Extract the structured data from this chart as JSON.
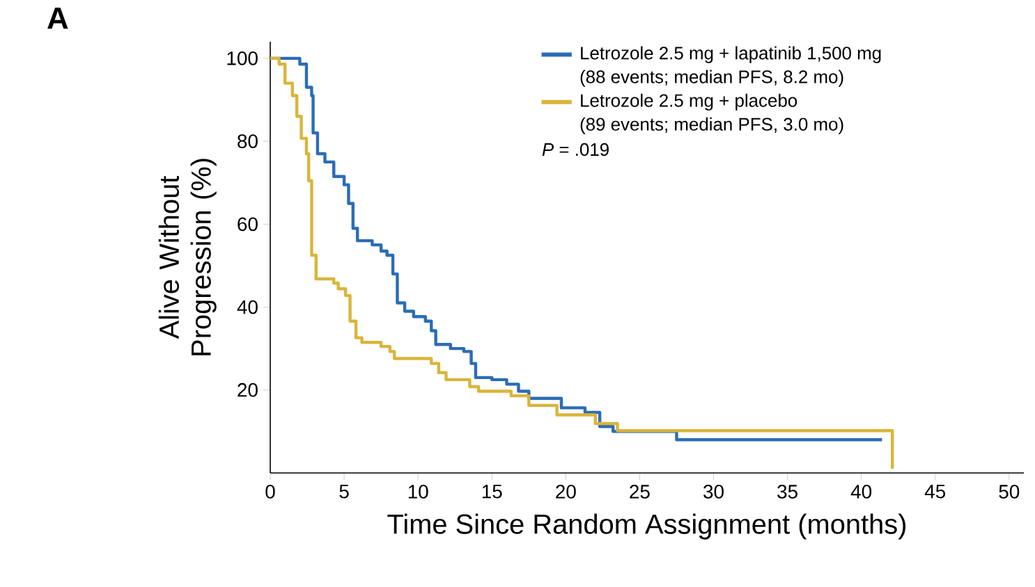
{
  "chart_data": {
    "type": "step",
    "title": "A",
    "xlabel": "Time Since Random Assignment (months)",
    "ylabel": "Alive Without Progression (%)",
    "xlim": [
      0,
      51
    ],
    "ylim": [
      0,
      104
    ],
    "xticks": [
      0,
      5,
      10,
      15,
      20,
      25,
      30,
      35,
      40,
      45,
      50
    ],
    "yticks": [
      20,
      40,
      60,
      80,
      100
    ],
    "legend": "top right",
    "grid": false,
    "marker": "none",
    "series": [
      {
        "name": "Letrozole 2.5 mg + lapatinib 1,500 mg",
        "color": "#2a6db5",
        "x": [
          0,
          2.0,
          2.45,
          2.8,
          2.9,
          3.2,
          3.7,
          4.3,
          5.0,
          5.3,
          5.6,
          5.9,
          6.9,
          7.5,
          7.9,
          8.3,
          8.6,
          9.1,
          9.7,
          10.5,
          10.9,
          11.2,
          12.2,
          13.1,
          13.6,
          13.9,
          15.0,
          16.0,
          16.8,
          17.5,
          19.7,
          21.3,
          22.3,
          23.2,
          27.5,
          41.4
        ],
        "values": [
          100,
          98.6,
          93,
          91,
          82,
          77,
          75,
          71.5,
          69.5,
          65,
          59,
          56,
          55,
          53.5,
          52.5,
          48,
          41,
          39,
          37.7,
          36.6,
          34.3,
          31,
          30,
          29.3,
          26.4,
          23,
          22.5,
          21.4,
          19.7,
          18,
          15.7,
          14.6,
          11.2,
          10,
          8,
          8
        ]
      },
      {
        "name": "Letrozole 2.5 mg + placebo",
        "color": "#d9b53a",
        "x": [
          0,
          0.6,
          1.0,
          1.5,
          1.8,
          2.1,
          2.45,
          2.6,
          2.8,
          3.1,
          4.3,
          4.6,
          5.1,
          5.4,
          5.8,
          6.2,
          7.5,
          8.1,
          8.4,
          10.9,
          11.4,
          11.9,
          13.5,
          14.1,
          16.3,
          17.5,
          19.4,
          22.0,
          23.5,
          42.1,
          42.1
        ],
        "values": [
          100,
          98.6,
          94,
          91,
          86,
          80.7,
          77,
          70.5,
          52.5,
          46.8,
          45.8,
          44.4,
          42.8,
          36.6,
          32.6,
          31.5,
          30.5,
          29.3,
          27.6,
          26.4,
          24.2,
          22.5,
          20.8,
          19.7,
          18.6,
          16.3,
          14,
          11.9,
          10.2,
          10.2,
          1
        ]
      }
    ],
    "annotations": [
      "(88 events; median PFS, 8.2 mo)",
      "(89 events; median PFS, 3.0 mo)",
      "*P* = .019"
    ]
  }
}
